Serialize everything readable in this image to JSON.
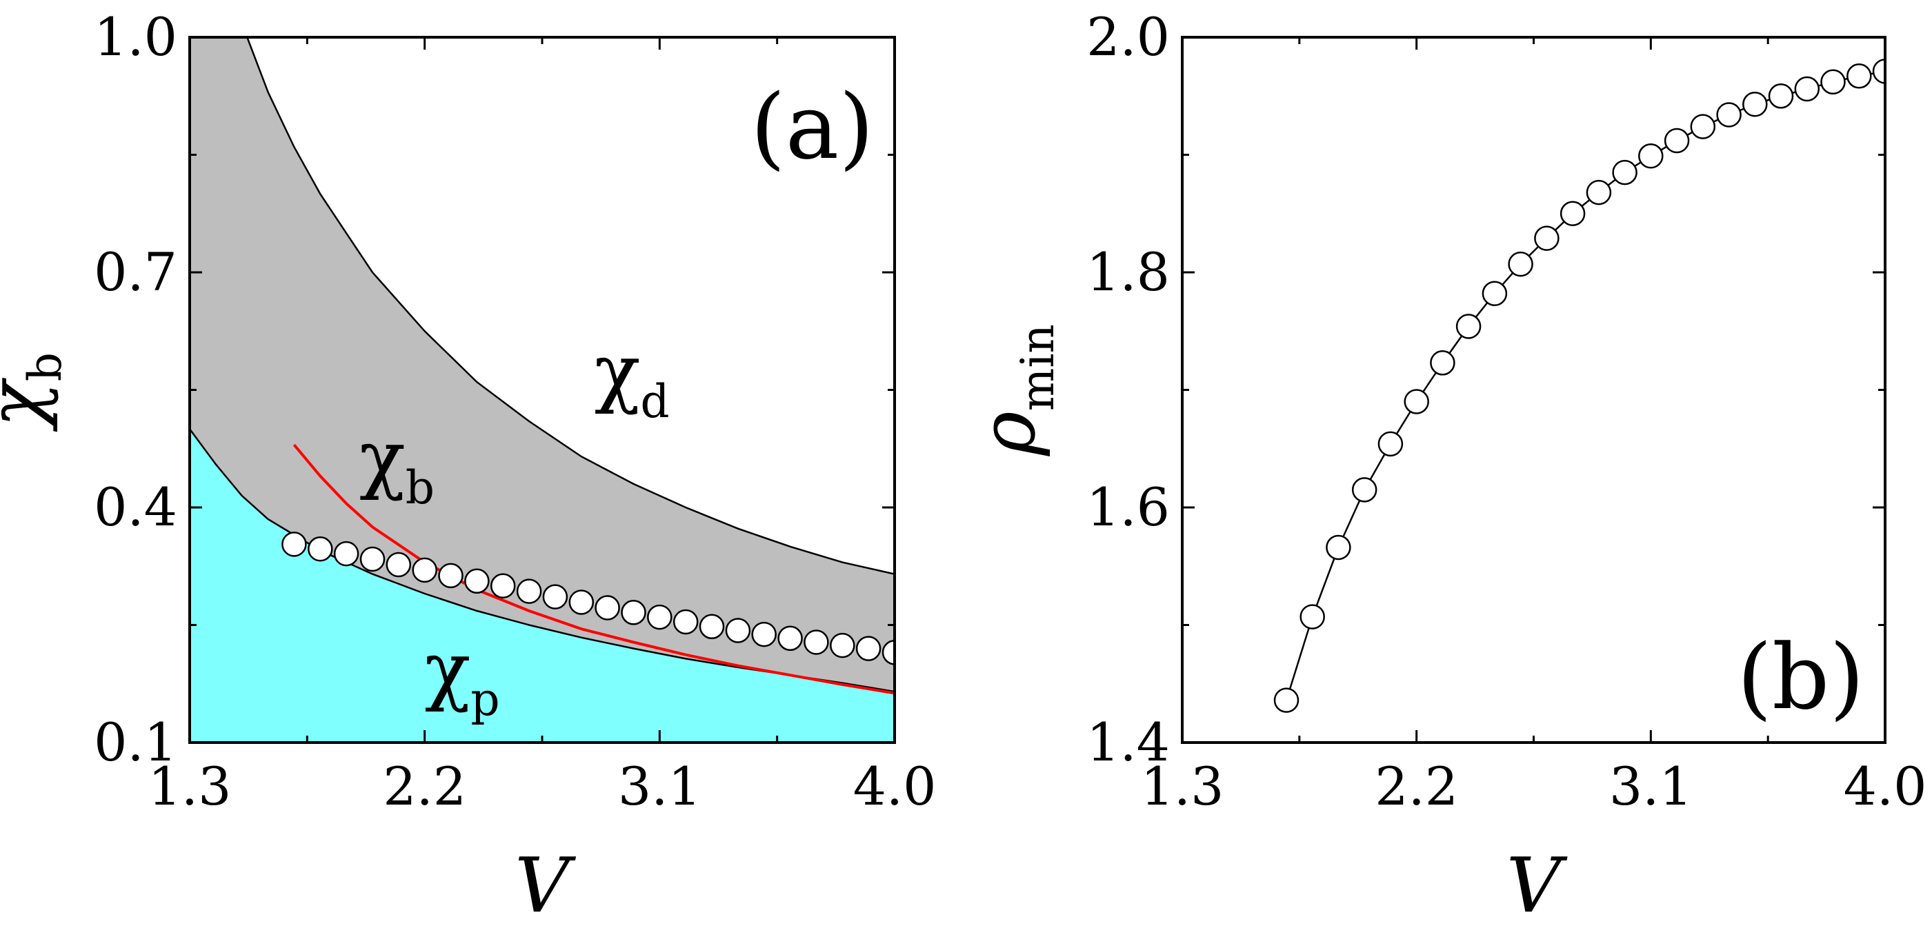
{
  "chart_data": [
    {
      "type": "area",
      "panel_label": "(a)",
      "xlabel": "V",
      "ylabel": {
        "main": "χ",
        "sub": "b"
      },
      "xlim": [
        1.3,
        4.0
      ],
      "ylim": [
        0.1,
        1.0
      ],
      "xticks": [
        1.3,
        2.2,
        3.1,
        4.0
      ],
      "yticks": [
        0.1,
        0.4,
        0.7,
        1.0
      ],
      "xtick_labels": [
        "1.3",
        "2.2",
        "3.1",
        "4.0"
      ],
      "ytick_labels": [
        "0.1",
        "0.4",
        "0.7",
        "1.0"
      ],
      "region_labels": [
        {
          "main": "χ",
          "sub": "d",
          "x": 2.85,
          "y": 0.54
        },
        {
          "main": "χ",
          "sub": "b",
          "x": 1.95,
          "y": 0.43
        },
        {
          "main": "χ",
          "sub": "p",
          "x": 2.2,
          "y": 0.16
        }
      ],
      "colors": {
        "gray_region": "#bebebe",
        "cyan_region": "#80ffff",
        "red_line": "#ff0000"
      },
      "series": [
        {
          "name": "upper boundary (χd)",
          "x": [
            1.52,
            1.6,
            1.7,
            1.8,
            1.9,
            2.0,
            2.2,
            2.4,
            2.6,
            2.8,
            3.0,
            3.2,
            3.4,
            3.6,
            3.8,
            4.0
          ],
          "y": [
            1.0,
            0.93,
            0.86,
            0.8,
            0.75,
            0.7,
            0.625,
            0.56,
            0.51,
            0.465,
            0.43,
            0.4,
            0.373,
            0.35,
            0.33,
            0.315
          ]
        },
        {
          "name": "lower boundary (χp)",
          "x": [
            1.3,
            1.4,
            1.5,
            1.6,
            1.8,
            2.0,
            2.2,
            2.4,
            2.6,
            2.8,
            3.0,
            3.2,
            3.4,
            3.6,
            3.8,
            4.0
          ],
          "y": [
            0.5,
            0.455,
            0.415,
            0.385,
            0.345,
            0.315,
            0.29,
            0.268,
            0.25,
            0.234,
            0.22,
            0.207,
            0.196,
            0.186,
            0.176,
            0.165
          ]
        },
        {
          "name": "red curve",
          "x": [
            1.7,
            1.8,
            1.9,
            2.0,
            2.2,
            2.4,
            2.6,
            2.8,
            3.0,
            3.2,
            3.4,
            3.6,
            3.8,
            4.0
          ],
          "y": [
            0.48,
            0.44,
            0.405,
            0.375,
            0.33,
            0.295,
            0.268,
            0.245,
            0.228,
            0.212,
            0.198,
            0.186,
            0.174,
            0.163
          ]
        },
        {
          "name": "circles",
          "x": [
            1.7,
            1.8,
            1.9,
            2.0,
            2.1,
            2.2,
            2.3,
            2.4,
            2.5,
            2.6,
            2.7,
            2.8,
            2.9,
            3.0,
            3.1,
            3.2,
            3.3,
            3.4,
            3.5,
            3.6,
            3.7,
            3.8,
            3.9,
            4.0
          ],
          "y": [
            0.353,
            0.347,
            0.341,
            0.334,
            0.327,
            0.32,
            0.313,
            0.306,
            0.3,
            0.293,
            0.286,
            0.279,
            0.272,
            0.266,
            0.26,
            0.254,
            0.248,
            0.243,
            0.238,
            0.233,
            0.228,
            0.224,
            0.22,
            0.215
          ]
        }
      ]
    },
    {
      "type": "line",
      "panel_label": "(b)",
      "xlabel": "V",
      "ylabel": {
        "main": "ρ",
        "sub": "min"
      },
      "xlim": [
        1.3,
        4.0
      ],
      "ylim": [
        1.4,
        2.0
      ],
      "xticks": [
        1.3,
        2.2,
        3.1,
        4.0
      ],
      "yticks": [
        1.4,
        1.6,
        1.8,
        2.0
      ],
      "xtick_labels": [
        "1.3",
        "2.2",
        "3.1",
        "4.0"
      ],
      "ytick_labels": [
        "1.4",
        "1.6",
        "1.8",
        "2.0"
      ],
      "series": [
        {
          "name": "ρmin",
          "x": [
            1.7,
            1.8,
            1.9,
            2.0,
            2.1,
            2.2,
            2.3,
            2.4,
            2.5,
            2.6,
            2.7,
            2.8,
            2.9,
            3.0,
            3.1,
            3.2,
            3.3,
            3.4,
            3.5,
            3.6,
            3.7,
            3.8,
            3.9,
            4.0
          ],
          "y": [
            1.436,
            1.507,
            1.566,
            1.615,
            1.654,
            1.69,
            1.723,
            1.754,
            1.782,
            1.807,
            1.829,
            1.85,
            1.868,
            1.885,
            1.899,
            1.912,
            1.924,
            1.934,
            1.943,
            1.95,
            1.956,
            1.962,
            1.967,
            1.971
          ]
        }
      ]
    }
  ]
}
